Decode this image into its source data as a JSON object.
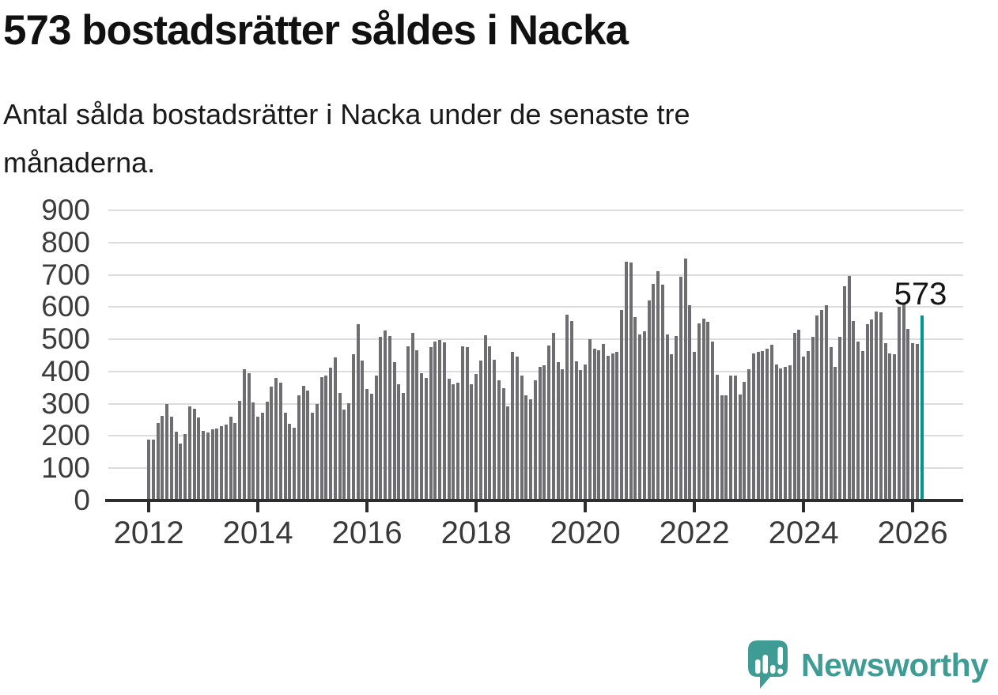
{
  "header": {
    "title": "573 bostadsrätter såldes i Nacka",
    "subtitle": "Antal sålda bostadsrätter i Nacka under de senaste tre månaderna.",
    "subtitle_lines": [
      "Antal sålda bostadsrätter i Nacka under de senaste tre",
      "månaderna."
    ]
  },
  "chart_data": {
    "type": "bar",
    "title": "573 bostadsrätter såldes i Nacka",
    "subtitle": "Antal sålda bostadsrätter i Nacka under de senaste tre månaderna.",
    "x_start": "2012-01",
    "x_end": "2026-03",
    "x_unit": "month",
    "x_tick_labels": [
      "2012",
      "2014",
      "2016",
      "2018",
      "2020",
      "2022",
      "2024",
      "2026"
    ],
    "y_tick_labels": [
      "0",
      "100",
      "200",
      "300",
      "400",
      "500",
      "600",
      "700",
      "800",
      "900"
    ],
    "ylim": [
      0,
      900
    ],
    "grid": "horizontal",
    "legend": "none",
    "bar_color": "#6d6d72",
    "highlight_color": "#00968f",
    "annotation": "573",
    "annotation_value": 573,
    "values": [
      189,
      190,
      241,
      263,
      300,
      261,
      213,
      176,
      206,
      293,
      284,
      257,
      215,
      211,
      221,
      222,
      230,
      235,
      259,
      241,
      309,
      408,
      396,
      304,
      261,
      273,
      307,
      352,
      380,
      366,
      271,
      238,
      225,
      326,
      356,
      342,
      273,
      299,
      382,
      388,
      411,
      445,
      333,
      283,
      302,
      453,
      546,
      435,
      345,
      330,
      388,
      507,
      527,
      511,
      430,
      360,
      333,
      479,
      520,
      465,
      395,
      380,
      475,
      493,
      499,
      491,
      378,
      361,
      365,
      479,
      475,
      360,
      392,
      434,
      513,
      477,
      437,
      372,
      348,
      291,
      462,
      447,
      388,
      327,
      315,
      373,
      414,
      419,
      480,
      521,
      430,
      408,
      576,
      557,
      431,
      405,
      423,
      501,
      470,
      466,
      485,
      450,
      456,
      461,
      590,
      740,
      738,
      568,
      515,
      526,
      620,
      673,
      711,
      669,
      515,
      454,
      509,
      695,
      750,
      606,
      462,
      549,
      565,
      553,
      492,
      391,
      326,
      326,
      388,
      388,
      328,
      369,
      408,
      457,
      462,
      464,
      470,
      484,
      423,
      410,
      415,
      420,
      521,
      530,
      447,
      463,
      508,
      573,
      592,
      605,
      476,
      415,
      508,
      665,
      697,
      556,
      492,
      463,
      548,
      562,
      586,
      584,
      487,
      455,
      453,
      602,
      608,
      532,
      487,
      485,
      573
    ]
  },
  "footer": {
    "brand": "Newsworthy",
    "logo_icon": "newsworthy-speech-bubble-bar-chart-icon"
  },
  "colors": {
    "bar_gray": "#6d6d72",
    "accent_teal": "#00968f",
    "brand_teal": "#3f9c94",
    "gridline": "#dcdcdc",
    "axis": "#2d2d2d"
  }
}
